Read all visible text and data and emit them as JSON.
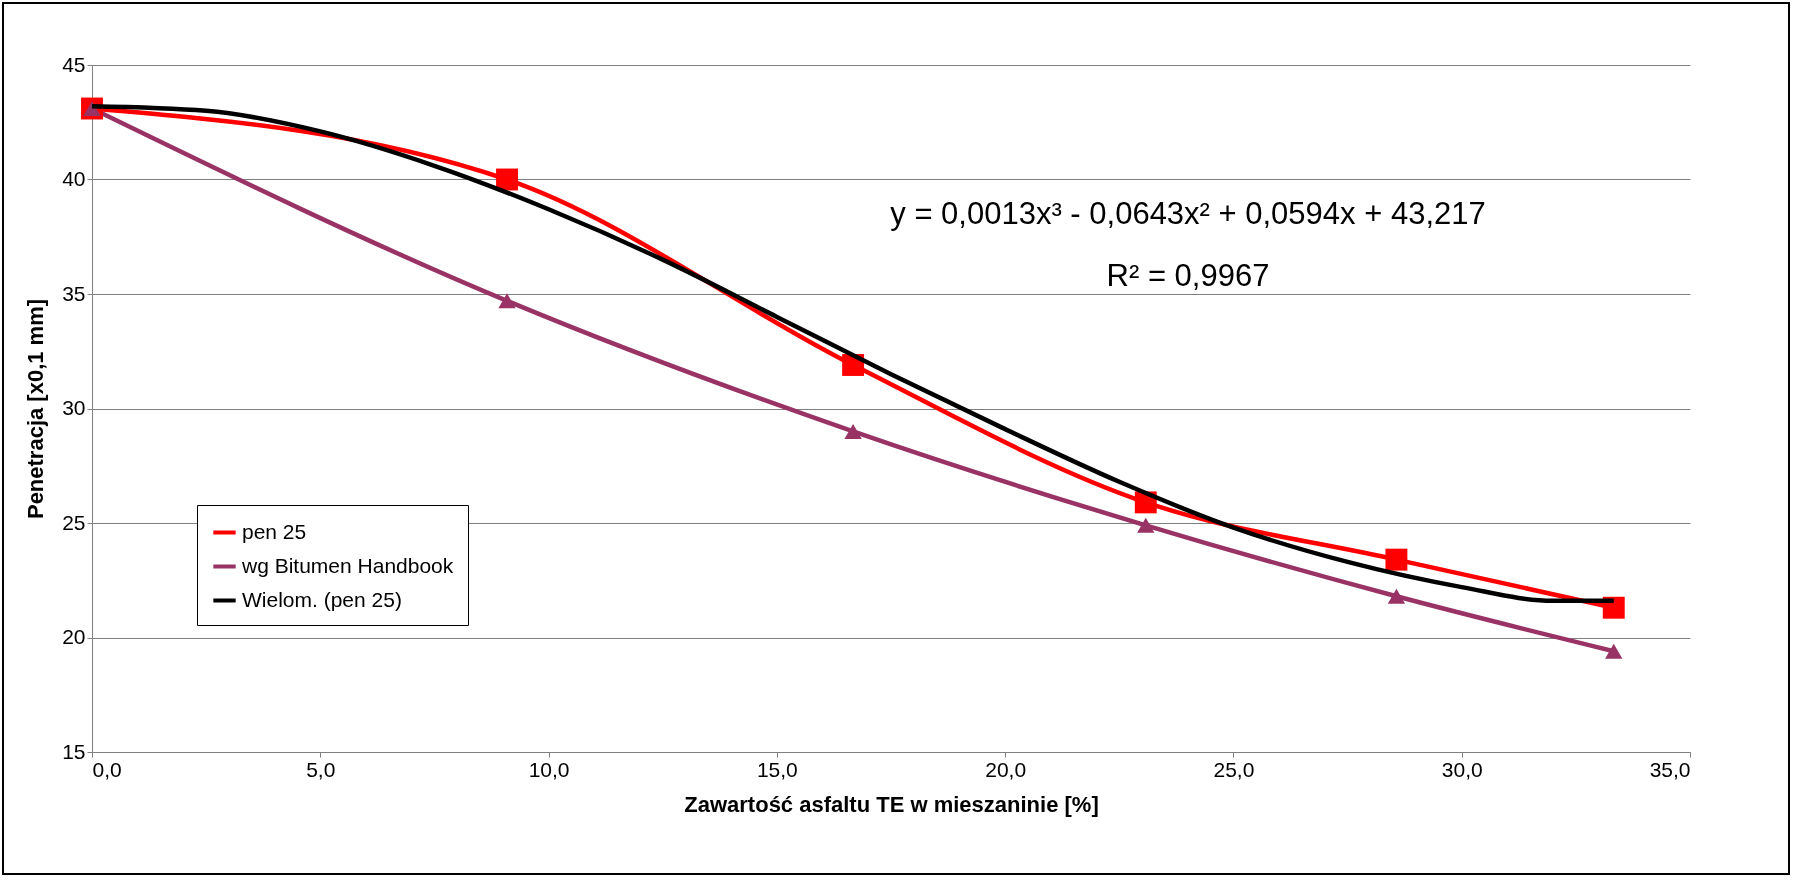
{
  "chart_data": {
    "type": "line",
    "xlabel": "Zawartość asfaltu TE w mieszaninie [%]",
    "ylabel": "Penetracja [x0,1 mm]",
    "series": [
      {
        "name": "pen 25",
        "color": "#ff0000",
        "marker": "square",
        "x": [
          0,
          9.09,
          16.67,
          23.08,
          28.57,
          33.33
        ],
        "values": [
          43.1,
          40.0,
          31.9,
          25.9,
          23.4,
          21.3
        ]
      },
      {
        "name": "wg Bitumen Handbook",
        "color": "#993366",
        "marker": "triangle",
        "x": [
          0,
          9.09,
          16.67,
          23.08,
          28.57,
          33.33
        ],
        "values": [
          43.1,
          34.7,
          29.0,
          24.9,
          21.8,
          19.4
        ]
      },
      {
        "name": "Wielom. (pen 25)",
        "color": "#000000",
        "marker": "none",
        "x": [
          0,
          2.5,
          5,
          7.5,
          10,
          12.5,
          15,
          17.5,
          20,
          22.5,
          25,
          27.5,
          30,
          32,
          33.33
        ],
        "values": [
          43.2,
          43.0,
          42.1,
          40.6,
          38.7,
          36.5,
          34.0,
          31.5,
          29.1,
          26.8,
          24.8,
          23.3,
          22.2,
          21.6,
          21.6
        ]
      }
    ],
    "xlim": [
      0,
      35
    ],
    "xticks": [
      {
        "value": 0,
        "label": "0,0"
      },
      {
        "value": 5,
        "label": "5,0"
      },
      {
        "value": 10,
        "label": "10,0"
      },
      {
        "value": 15,
        "label": "15,0"
      },
      {
        "value": 20,
        "label": "20,0"
      },
      {
        "value": 25,
        "label": "25,0"
      },
      {
        "value": 30,
        "label": "30,0"
      },
      {
        "value": 35,
        "label": "35,0"
      }
    ],
    "ylim": [
      15,
      45
    ],
    "yticks": [
      15,
      20,
      25,
      30,
      35,
      40,
      45
    ],
    "grid": "y",
    "legend": "bottom left",
    "annotations": [
      "y = 0,0013x³ - 0,0643x² + 0,0594x + 43,217",
      "R² = 0,9967"
    ]
  }
}
